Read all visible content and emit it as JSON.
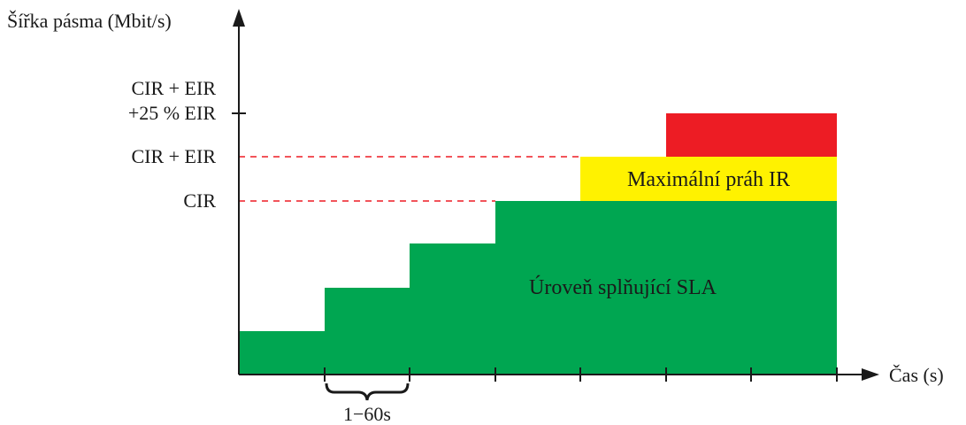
{
  "axes": {
    "y_label": "Šířka pásma (Mbit/s)",
    "x_label": "Čas (s)"
  },
  "levels": {
    "cir_eir_plus_line1": "CIR + EIR",
    "cir_eir_plus_line2": "+25 % EIR",
    "cir_eir": "CIR + EIR",
    "cir": "CIR"
  },
  "regions": {
    "sla_label": "Úroveň splňující SLA",
    "max_ir_label": "Maximální práh IR"
  },
  "interval": {
    "label": "1−60s"
  },
  "colors": {
    "sla": "#00a651",
    "max_ir": "#fff200",
    "over": "#ed1c24",
    "threshold_line": "#ed1c24",
    "axis": "#1a1a1a"
  },
  "stair_levels": [
    1,
    2,
    3,
    4
  ],
  "tick_count": 7
}
